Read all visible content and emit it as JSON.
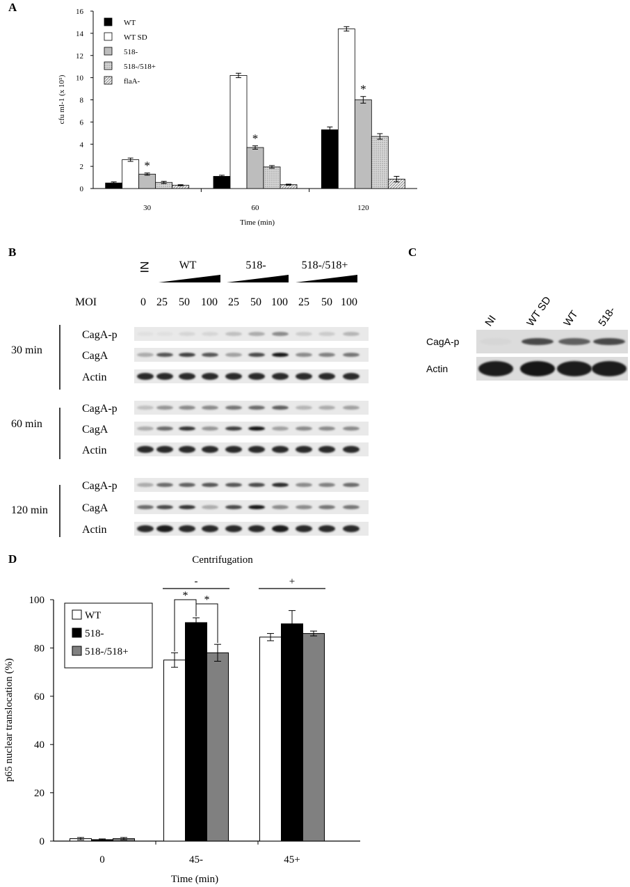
{
  "panels": {
    "a": "A",
    "b": "B",
    "c": "C",
    "d": "D"
  },
  "colors": {
    "wt": "#000000",
    "wt_sd": "#ffffff",
    "m518": "#bdbdbd",
    "m518_518": "#c8c8c8",
    "flaA": "#dcdcdc",
    "d_518_518": "#808080"
  },
  "chart_data": [
    {
      "type": "bar",
      "panel": "A",
      "categories": [
        "30",
        "60",
        "120"
      ],
      "xlabel": "Time (min)",
      "ylabel": "cfu ml-1 (x 10⁵)",
      "ylim": [
        0,
        16
      ],
      "yticks": [
        0,
        2,
        4,
        6,
        8,
        10,
        12,
        14,
        16
      ],
      "legend_position": "top-left",
      "series": [
        {
          "name": "WT",
          "values": [
            0.5,
            1.1,
            5.3
          ],
          "errors": [
            0.1,
            0.1,
            0.25
          ]
        },
        {
          "name": "WT SD",
          "values": [
            2.6,
            10.2,
            14.4
          ],
          "errors": [
            0.15,
            0.2,
            0.2
          ]
        },
        {
          "name": "518-",
          "values": [
            1.3,
            3.7,
            8.0
          ],
          "errors": [
            0.1,
            0.15,
            0.3
          ]
        },
        {
          "name": "518-/518+",
          "values": [
            0.55,
            1.95,
            4.7
          ],
          "errors": [
            0.1,
            0.12,
            0.25
          ]
        },
        {
          "name": "flaA-",
          "values": [
            0.3,
            0.35,
            0.85
          ],
          "errors": [
            0.05,
            0.05,
            0.25
          ]
        }
      ],
      "significance": [
        {
          "category": "30",
          "series": "518-",
          "mark": "*"
        },
        {
          "category": "60",
          "series": "518-",
          "mark": "*"
        },
        {
          "category": "120",
          "series": "518-",
          "mark": "*"
        }
      ]
    },
    {
      "type": "bar",
      "panel": "D",
      "title": "Centrifugation",
      "categories": [
        "0",
        "45-",
        "45+"
      ],
      "xlabel": "Time (min)",
      "ylabel": "p65 nuclear translocation (%)",
      "ylim": [
        0,
        100
      ],
      "yticks": [
        0,
        20,
        40,
        60,
        80,
        100
      ],
      "legend_position": "top-left",
      "groups": [
        {
          "label": "-",
          "category": "45-"
        },
        {
          "label": "+",
          "category": "45+"
        }
      ],
      "series": [
        {
          "name": "WT",
          "values": [
            1.0,
            75,
            84.5
          ],
          "errors": [
            0.5,
            3,
            1.5
          ]
        },
        {
          "name": "518-",
          "values": [
            0.6,
            90.5,
            90
          ],
          "errors": [
            0.3,
            2,
            5.5
          ]
        },
        {
          "name": "518-/518+",
          "values": [
            1.0,
            78,
            86
          ],
          "errors": [
            0.5,
            3.5,
            1
          ]
        }
      ],
      "brackets": [
        {
          "from": "WT",
          "to": "518-",
          "category": "45-",
          "mark": "*"
        },
        {
          "from": "518-",
          "to": "518-/518+",
          "category": "45-",
          "mark": "*"
        }
      ]
    }
  ],
  "blot_b": {
    "ni": "NI",
    "groups": [
      "WT",
      "518-",
      "518-/518+"
    ],
    "moi_label": "MOI",
    "moi_values": [
      "0",
      "25",
      "50",
      "100",
      "25",
      "50",
      "100",
      "25",
      "50",
      "100"
    ],
    "timepoints": [
      {
        "label": "30 min",
        "rows": [
          "CagA-p",
          "CagA",
          "Actin"
        ],
        "intensity": [
          [
            0.02,
            0.05,
            0.05,
            0.1,
            0.1,
            0.2,
            0.3,
            0.45,
            0.15,
            0.15,
            0.25
          ],
          [
            0.05,
            0.3,
            0.7,
            0.8,
            0.7,
            0.35,
            0.75,
            0.98,
            0.45,
            0.5,
            0.55
          ],
          [
            0.9,
            0.9,
            0.9,
            0.9,
            0.9,
            0.9,
            0.9,
            0.9,
            0.9,
            0.9,
            0.9
          ]
        ]
      },
      {
        "label": "60 min",
        "rows": [
          "CagA-p",
          "CagA",
          "Actin"
        ],
        "intensity": [
          [
            0.05,
            0.2,
            0.4,
            0.45,
            0.45,
            0.55,
            0.6,
            0.65,
            0.25,
            0.3,
            0.35
          ],
          [
            0.05,
            0.3,
            0.6,
            0.85,
            0.4,
            0.8,
            0.98,
            0.35,
            0.45,
            0.45,
            0.45
          ],
          [
            0.9,
            0.9,
            0.9,
            0.9,
            0.9,
            0.9,
            0.9,
            0.9,
            0.9,
            0.9,
            0.9
          ]
        ]
      },
      {
        "label": "120 min",
        "rows": [
          "CagA-p",
          "CagA",
          "Actin"
        ],
        "intensity": [
          [
            0.05,
            0.3,
            0.6,
            0.65,
            0.7,
            0.7,
            0.75,
            0.9,
            0.45,
            0.5,
            0.6
          ],
          [
            0.15,
            0.6,
            0.75,
            0.85,
            0.3,
            0.75,
            0.98,
            0.45,
            0.45,
            0.55,
            0.55
          ],
          [
            0.9,
            0.9,
            0.95,
            0.9,
            0.9,
            0.9,
            0.9,
            0.95,
            0.9,
            0.9,
            0.9
          ]
        ]
      }
    ]
  },
  "blot_c": {
    "lanes": [
      "NI",
      "WT SD",
      "WT",
      "518-"
    ],
    "rows": [
      "CagA-p",
      "Actin"
    ],
    "intensity": [
      [
        0.1,
        0.75,
        0.65,
        0.75
      ],
      [
        0.95,
        0.98,
        0.95,
        0.95
      ]
    ]
  }
}
